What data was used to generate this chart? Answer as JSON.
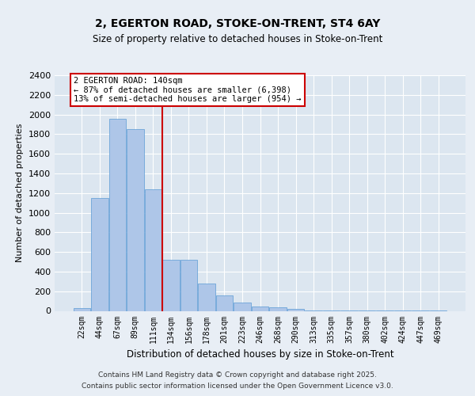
{
  "title_line1": "2, EGERTON ROAD, STOKE-ON-TRENT, ST4 6AY",
  "title_line2": "Size of property relative to detached houses in Stoke-on-Trent",
  "xlabel": "Distribution of detached houses by size in Stoke-on-Trent",
  "ylabel": "Number of detached properties",
  "categories": [
    "22sqm",
    "44sqm",
    "67sqm",
    "89sqm",
    "111sqm",
    "134sqm",
    "156sqm",
    "178sqm",
    "201sqm",
    "223sqm",
    "246sqm",
    "268sqm",
    "290sqm",
    "313sqm",
    "335sqm",
    "357sqm",
    "380sqm",
    "402sqm",
    "424sqm",
    "447sqm",
    "469sqm"
  ],
  "values": [
    25,
    1150,
    1960,
    1850,
    1240,
    520,
    520,
    275,
    155,
    85,
    45,
    35,
    20,
    8,
    5,
    2,
    1,
    1,
    3,
    1,
    3
  ],
  "bar_color": "#aec6e8",
  "bar_edge_color": "#5b9bd5",
  "vline_color": "#cc0000",
  "annotation_box_text": "2 EGERTON ROAD: 140sqm\n← 87% of detached houses are smaller (6,398)\n13% of semi-detached houses are larger (954) →",
  "annotation_box_color": "#cc0000",
  "annotation_text_color": "#000000",
  "ylim": [
    0,
    2400
  ],
  "yticks": [
    0,
    200,
    400,
    600,
    800,
    1000,
    1200,
    1400,
    1600,
    1800,
    2000,
    2200,
    2400
  ],
  "bg_color": "#e8eef5",
  "plot_bg_color": "#dce6f0",
  "grid_color": "#ffffff",
  "footnote_line1": "Contains HM Land Registry data © Crown copyright and database right 2025.",
  "footnote_line2": "Contains public sector information licensed under the Open Government Licence v3.0."
}
